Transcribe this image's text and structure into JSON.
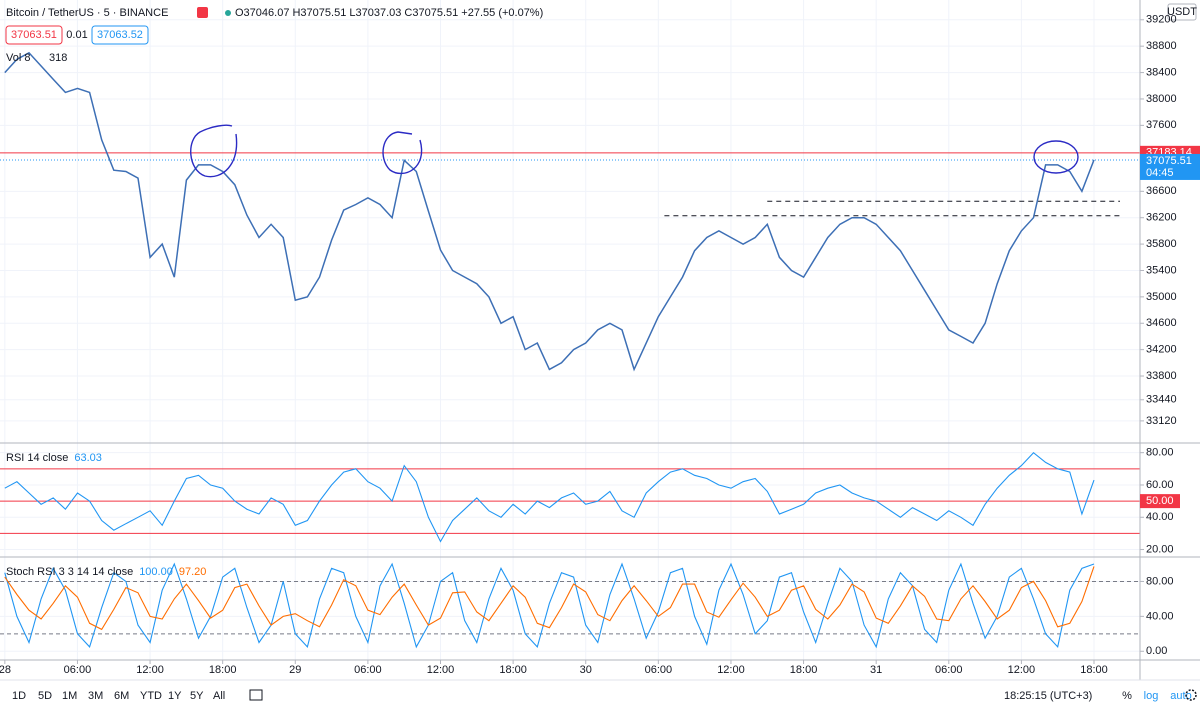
{
  "header": {
    "symbol": "Bitcoin / TetherUS · 5 · BINANCE",
    "ohlc": "O37046.07 H37075.51 L37037.03 C37075.51 +27.55 (+0.07%)",
    "sell": "37063.51",
    "spread": "0.01",
    "buy": "37063.52",
    "currency": "USDT",
    "volume_name": "Vol 8",
    "volume_value": "318"
  },
  "toolbar": {
    "ranges": [
      "1D",
      "5D",
      "1M",
      "3M",
      "6M",
      "YTD",
      "1Y",
      "5Y",
      "All"
    ],
    "clock": "18:25:15 (UTC+3)",
    "options": [
      "%",
      "log",
      "auto"
    ]
  },
  "chart_data": [
    {
      "type": "line",
      "xlim": [
        -0.4,
        93.8
      ],
      "ylim": [
        32800,
        39500
      ],
      "grid": true,
      "yticks": [
        33120,
        33440,
        33800,
        34200,
        34600,
        35000,
        35400,
        35800,
        36200,
        36600,
        37600,
        38000,
        38400,
        38800,
        39200
      ],
      "series": [
        {
          "name": "BTCUSDT",
          "color": "#3d6fb5",
          "values": [
            38400,
            38600,
            38700,
            38500,
            38300,
            38100,
            38160,
            38100,
            37380,
            36920,
            36900,
            36800,
            35600,
            35800,
            35300,
            36770,
            37000,
            37000,
            36900,
            36700,
            36240,
            35900,
            36100,
            35900,
            34950,
            35000,
            35300,
            35860,
            36315,
            36400,
            36500,
            36400,
            36200,
            37070,
            36900,
            36300,
            35710,
            35400,
            35300,
            35200,
            35000,
            34600,
            34700,
            34200,
            34300,
            33900,
            34000,
            34200,
            34300,
            34500,
            34600,
            34500,
            33900,
            34300,
            34700,
            35000,
            35300,
            35700,
            35900,
            36000,
            35900,
            35800,
            35900,
            36100,
            35600,
            35400,
            35300,
            35600,
            35900,
            36100,
            36200,
            36200,
            36100,
            35900,
            35700,
            35400,
            35100,
            34800,
            34500,
            34400,
            34300,
            34600,
            35200,
            35700,
            36000,
            36200,
            37000,
            37000,
            36900,
            36600,
            37075.51
          ]
        }
      ],
      "hline": {
        "value": 37183.14,
        "color": "#f23645"
      },
      "last_price": {
        "value": 37075.51,
        "countdown": "04:45",
        "color": "#2196f3"
      },
      "levels": [
        {
          "value": 36450,
          "from": 63
        },
        {
          "value": 36230,
          "from": 54.5
        }
      ]
    },
    {
      "type": "line",
      "title": "RSI 14 close",
      "legend_value": 63.03,
      "xlim": [
        -0.4,
        93.8
      ],
      "ylim": [
        16,
        86
      ],
      "grid": true,
      "yticks": [
        {
          "value": 20,
          "label": "20.00"
        },
        {
          "value": 40,
          "label": "40.00"
        },
        {
          "value": 60,
          "label": "60.00"
        },
        {
          "value": 80,
          "label": "80.00"
        }
      ],
      "bands": [
        30,
        70
      ],
      "band_color": "#f23645",
      "mid": {
        "value": 50,
        "label": "50.00"
      },
      "series": [
        {
          "name": "RSI",
          "color": "#2196f3",
          "values": [
            58,
            62,
            55,
            48,
            52,
            45,
            55,
            50,
            38,
            32,
            36,
            40,
            44,
            35,
            50,
            64,
            66,
            60,
            58,
            50,
            45,
            42,
            52,
            48,
            35,
            38,
            50,
            60,
            68,
            70,
            62,
            58,
            50,
            72,
            62,
            40,
            25,
            38,
            45,
            52,
            44,
            40,
            48,
            42,
            50,
            46,
            52,
            55,
            48,
            50,
            56,
            44,
            40,
            55,
            62,
            68,
            70,
            66,
            64,
            60,
            58,
            62,
            64,
            56,
            42,
            45,
            48,
            55,
            58,
            60,
            55,
            52,
            50,
            45,
            40,
            46,
            42,
            38,
            44,
            40,
            35,
            48,
            58,
            66,
            72,
            80,
            74,
            70,
            68,
            42,
            63.03
          ]
        }
      ]
    },
    {
      "type": "line",
      "title": "Stoch RSI 3 3 14 14 close",
      "xlim": [
        -0.4,
        93.8
      ],
      "ylim": [
        -10,
        108
      ],
      "grid": true,
      "yticks": [
        {
          "value": 0,
          "label": "0.00"
        },
        {
          "value": 40,
          "label": "40.00"
        },
        {
          "value": 80,
          "label": "80.00"
        }
      ],
      "bands": [
        20,
        80
      ],
      "band_color": "#787b86",
      "legend_values": [
        {
          "value": 100,
          "label": "100.00"
        },
        {
          "value": 97.2,
          "label": "97.20"
        }
      ],
      "xticks": [
        {
          "value": 0,
          "label": "28"
        },
        {
          "value": 6,
          "label": "06:00"
        },
        {
          "value": 12,
          "label": "12:00"
        },
        {
          "value": 18,
          "label": "18:00"
        },
        {
          "value": 24,
          "label": "29"
        },
        {
          "value": 30,
          "label": "06:00"
        },
        {
          "value": 36,
          "label": "12:00"
        },
        {
          "value": 42,
          "label": "18:00"
        },
        {
          "value": 48,
          "label": "30"
        },
        {
          "value": 54,
          "label": "06:00"
        },
        {
          "value": 60,
          "label": "12:00"
        },
        {
          "value": 66,
          "label": "18:00"
        },
        {
          "value": 72,
          "label": "31"
        },
        {
          "value": 78,
          "label": "06:00"
        },
        {
          "value": 84,
          "label": "12:00"
        },
        {
          "value": 90,
          "label": "18:00"
        }
      ],
      "series": [
        {
          "name": "K",
          "color": "#2196f3",
          "values": [
            90,
            40,
            10,
            60,
            95,
            70,
            20,
            5,
            50,
            90,
            80,
            30,
            10,
            70,
            100,
            60,
            15,
            40,
            85,
            95,
            50,
            10,
            30,
            80,
            20,
            5,
            60,
            95,
            90,
            40,
            10,
            75,
            100,
            55,
            5,
            30,
            80,
            90,
            35,
            10,
            60,
            95,
            70,
            20,
            5,
            55,
            90,
            85,
            30,
            10,
            65,
            100,
            60,
            15,
            45,
            90,
            95,
            40,
            8,
            70,
            100,
            65,
            20,
            35,
            85,
            90,
            45,
            10,
            55,
            95,
            80,
            30,
            5,
            60,
            90,
            75,
            25,
            10,
            70,
            100,
            55,
            15,
            40,
            85,
            95,
            60,
            20,
            5,
            70,
            95,
            100
          ]
        },
        {
          "name": "D",
          "color": "#ff6d00",
          "values": [
            85,
            65,
            47,
            37,
            55,
            75,
            62,
            32,
            25,
            48,
            73,
            67,
            40,
            37,
            60,
            77,
            58,
            38,
            47,
            73,
            77,
            52,
            30,
            40,
            43,
            35,
            28,
            53,
            82,
            75,
            47,
            42,
            62,
            77,
            53,
            30,
            38,
            67,
            68,
            45,
            35,
            55,
            75,
            62,
            32,
            27,
            50,
            77,
            68,
            42,
            35,
            58,
            75,
            58,
            40,
            50,
            77,
            77,
            45,
            39,
            59,
            78,
            62,
            40,
            47,
            70,
            75,
            48,
            37,
            53,
            77,
            68,
            38,
            32,
            52,
            75,
            63,
            37,
            35,
            60,
            75,
            57,
            37,
            47,
            73,
            80,
            58,
            28,
            32,
            57,
            97.2
          ]
        }
      ]
    }
  ]
}
